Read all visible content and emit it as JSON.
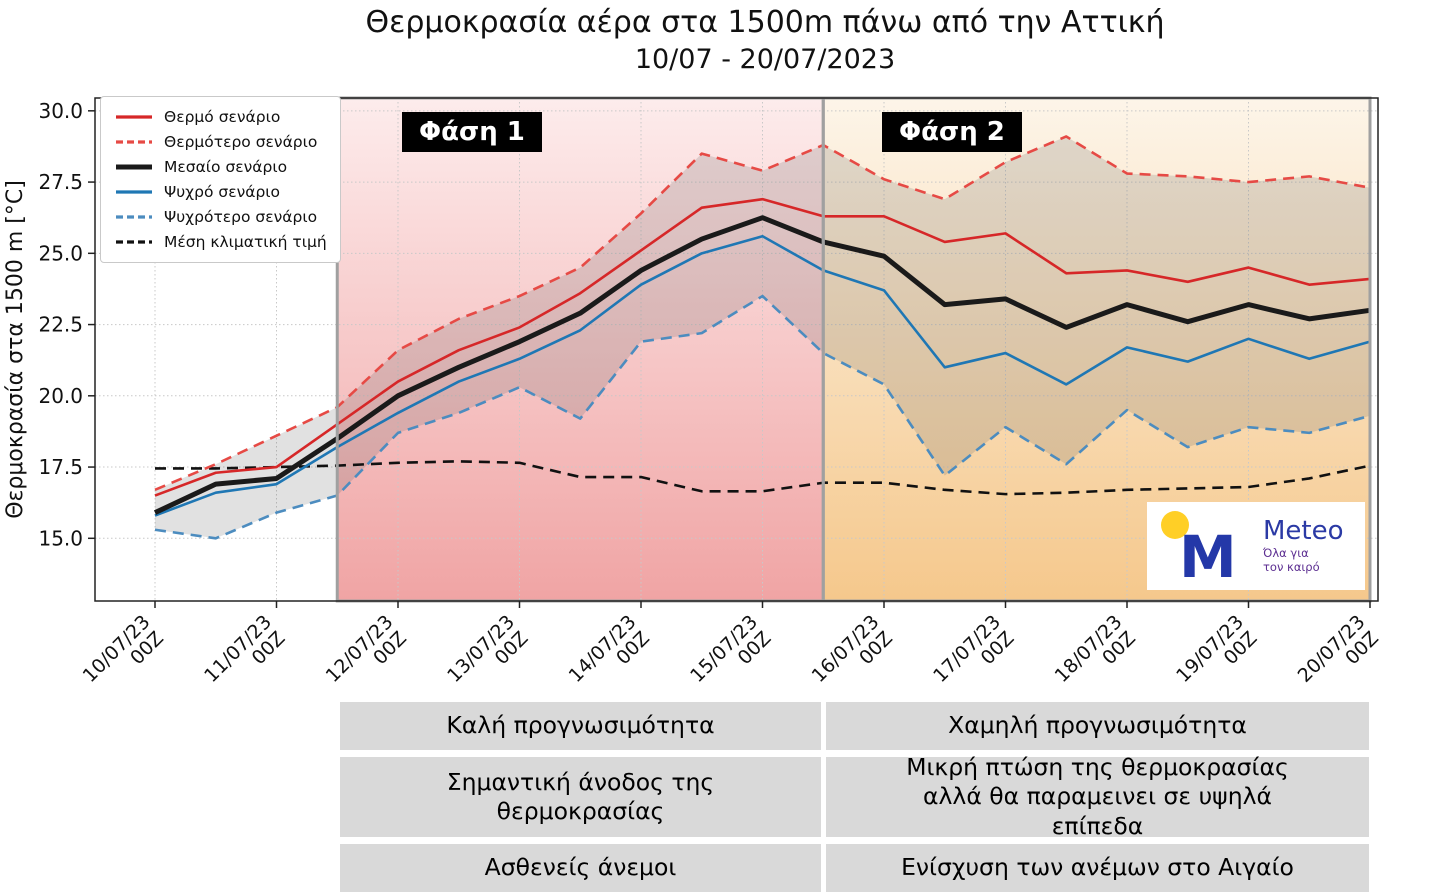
{
  "title": "Θερμοκρασία αέρα στα 1500m πάνω από την Αττική",
  "subtitle": "10/07 - 20/07/2023",
  "chart_data": {
    "type": "line",
    "title": "Θερμοκρασία αέρα στα 1500m πάνω από την Αττική",
    "subtitle": "10/07 - 20/07/2023",
    "xlabel": "",
    "ylabel": "Θερμοκρασία στα 1500 m [°C]",
    "ylim": [
      12.8,
      30.45
    ],
    "yticks": [
      15.0,
      17.5,
      20.0,
      22.5,
      25.0,
      27.5,
      30.0
    ],
    "grid": true,
    "legend_position": "upper left",
    "x": [
      0,
      0.5,
      1,
      1.5,
      2,
      2.5,
      3,
      3.5,
      4,
      4.5,
      5,
      5.5,
      6,
      6.5,
      7,
      7.5,
      8,
      8.5,
      9,
      9.5,
      10
    ],
    "xtick_labels": [
      [
        "10/07/23",
        "00Z"
      ],
      [
        "11/07/23",
        "00Z"
      ],
      [
        "12/07/23",
        "00Z"
      ],
      [
        "13/07/23",
        "00Z"
      ],
      [
        "14/07/23",
        "00Z"
      ],
      [
        "15/07/23",
        "00Z"
      ],
      [
        "16/07/23",
        "00Z"
      ],
      [
        "17/07/23",
        "00Z"
      ],
      [
        "18/07/23",
        "00Z"
      ],
      [
        "19/07/23",
        "00Z"
      ],
      [
        "20/07/23",
        "00Z"
      ]
    ],
    "series": [
      {
        "name": "Θερμό σενάριο",
        "color": "#d62728",
        "dash": "solid",
        "width": 2.6,
        "values": [
          16.5,
          17.3,
          17.5,
          19.0,
          20.5,
          21.6,
          22.4,
          23.6,
          25.1,
          26.6,
          26.9,
          26.3,
          26.3,
          25.4,
          25.7,
          24.3,
          24.4,
          24.0,
          24.5,
          23.9,
          24.1
        ]
      },
      {
        "name": "Θερμότερο σενάριο",
        "color": "#e64a45",
        "dash": "dashed",
        "width": 2.6,
        "values": [
          16.7,
          17.6,
          18.6,
          19.6,
          21.6,
          22.7,
          23.5,
          24.5,
          26.4,
          28.5,
          27.9,
          28.8,
          27.6,
          26.9,
          28.2,
          29.1,
          27.8,
          27.7,
          27.5,
          27.7,
          27.3
        ]
      },
      {
        "name": "Μεσαίο σενάριο",
        "color": "#1a1a1a",
        "dash": "solid",
        "width": 5,
        "values": [
          15.9,
          16.9,
          17.1,
          18.5,
          20.0,
          21.0,
          21.9,
          22.9,
          24.4,
          25.5,
          26.25,
          25.4,
          24.9,
          23.2,
          23.4,
          22.4,
          23.2,
          22.6,
          23.2,
          22.7,
          23.0
        ]
      },
      {
        "name": "Ψυχρό σενάριο",
        "color": "#1f77b4",
        "dash": "solid",
        "width": 2.6,
        "values": [
          15.8,
          16.6,
          16.9,
          18.2,
          19.4,
          20.5,
          21.3,
          22.3,
          23.9,
          25.0,
          25.6,
          24.4,
          23.7,
          21.0,
          21.5,
          20.4,
          21.7,
          21.2,
          22.0,
          21.3,
          21.9
        ]
      },
      {
        "name": "Ψυχρότερο σενάριο",
        "color": "#4c8cbf",
        "dash": "dashed",
        "width": 2.6,
        "values": [
          15.3,
          15.0,
          15.9,
          16.5,
          18.7,
          19.4,
          20.3,
          19.2,
          21.9,
          22.2,
          23.5,
          21.5,
          20.4,
          17.2,
          18.9,
          17.6,
          19.5,
          18.2,
          18.9,
          18.7,
          19.3
        ]
      },
      {
        "name": "Μέση κλιματική τιμή",
        "color": "#111111",
        "dash": "dashed",
        "width": 2.6,
        "values": [
          17.45,
          17.45,
          17.5,
          17.55,
          17.65,
          17.7,
          17.65,
          17.15,
          17.15,
          16.65,
          16.65,
          16.95,
          16.95,
          16.7,
          16.55,
          16.6,
          16.7,
          16.75,
          16.8,
          17.1,
          17.55
        ]
      }
    ],
    "envelope": {
      "upper_series": "Θερμότερο σενάριο",
      "lower_series": "Ψυχρότερο σενάριο",
      "fill": "rgba(90,90,90,0.18)"
    },
    "phases": [
      {
        "label": "Φάση 1",
        "x_start": 1.5,
        "x_end": 5.5,
        "gradient_top": "#fdecec",
        "gradient_bottom": "#f0a4a4"
      },
      {
        "label": "Φάση 2",
        "x_start": 5.5,
        "x_end": 10,
        "gradient_top": "#fdf5e9",
        "gradient_bottom": "#f5c88c"
      }
    ],
    "colors": {
      "warm_red": "#d62728",
      "cool_blue": "#1f77b4",
      "phase_border": "#a0a0a0"
    }
  },
  "logo": {
    "brand": "Meteo",
    "tagline_line1": "Όλα για",
    "tagline_line2": "τον καιρό"
  },
  "table": {
    "rows": [
      {
        "left": "Καλή προγνωσιμότητα",
        "right": "Χαμηλή προγνωσιμότητα"
      },
      {
        "left": "Σημαντική άνοδος της θερμοκρασίας",
        "right": "Μικρή πτώση της θερμοκρασίας αλλά θα παραμεινει σε υψηλά επίπεδα"
      },
      {
        "left": "Ασθενείς άνεμοι",
        "right": "Ενίσχυση των ανέμων στο Αιγαίο"
      }
    ]
  }
}
